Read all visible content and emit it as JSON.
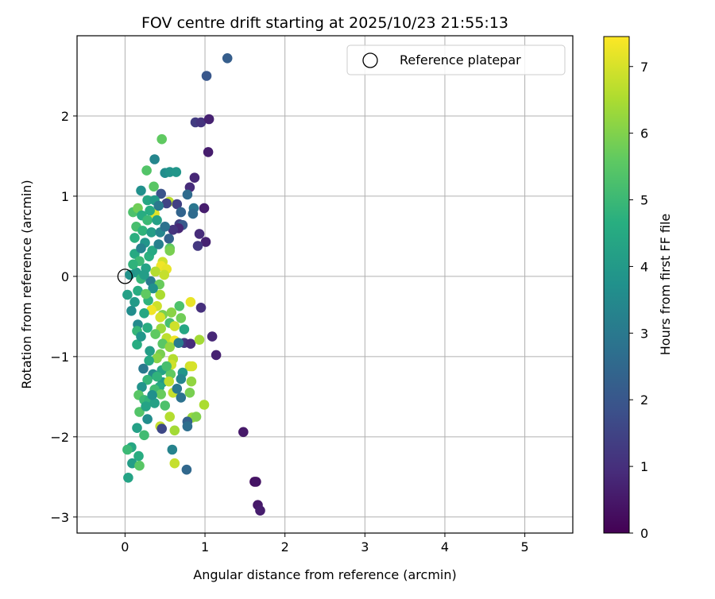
{
  "chart_data": {
    "type": "scatter",
    "title": "FOV centre drift starting at 2025/10/23 21:55:13",
    "xlabel": "Angular distance from reference (arcmin)",
    "ylabel": "Rotation from reference (arcmin)",
    "xlim": [
      -0.6,
      5.6
    ],
    "ylim": [
      -3.2,
      3.0
    ],
    "xticks": [
      0,
      1,
      2,
      3,
      4,
      5
    ],
    "yticks": [
      -3,
      -2,
      -1,
      0,
      1,
      2
    ],
    "xtick_labels": [
      "0",
      "1",
      "2",
      "3",
      "4",
      "5"
    ],
    "ytick_labels": [
      "−3",
      "−2",
      "−1",
      "0",
      "1",
      "2"
    ],
    "grid": true,
    "legend": {
      "position": "top-right",
      "entries": [
        {
          "label": "Reference platepar",
          "marker": "open-circle"
        }
      ]
    },
    "reference_point": {
      "x": 0,
      "y": 0
    },
    "colorbar": {
      "label": "Hours from first FF file",
      "colormap": "viridis",
      "range": [
        0,
        7.45
      ],
      "ticks": [
        0,
        1,
        2,
        3,
        4,
        5,
        6,
        7
      ],
      "tick_labels": [
        "0",
        "1",
        "2",
        "3",
        "4",
        "5",
        "6",
        "7"
      ]
    },
    "points": [
      {
        "x": 1.28,
        "y": 2.72,
        "t": 2.2
      },
      {
        "x": 1.02,
        "y": 2.5,
        "t": 2.0
      },
      {
        "x": 0.88,
        "y": 1.92,
        "t": 1.3
      },
      {
        "x": 0.95,
        "y": 1.92,
        "t": 1.1
      },
      {
        "x": 1.05,
        "y": 1.96,
        "t": 0.7
      },
      {
        "x": 1.04,
        "y": 1.55,
        "t": 0.6
      },
      {
        "x": 0.46,
        "y": 1.71,
        "t": 5.6
      },
      {
        "x": 0.37,
        "y": 1.46,
        "t": 3.4
      },
      {
        "x": 0.27,
        "y": 1.32,
        "t": 5.4
      },
      {
        "x": 0.5,
        "y": 1.29,
        "t": 3.6
      },
      {
        "x": 0.56,
        "y": 1.3,
        "t": 3.8
      },
      {
        "x": 0.64,
        "y": 1.3,
        "t": 3.9
      },
      {
        "x": 0.87,
        "y": 1.23,
        "t": 0.8
      },
      {
        "x": 0.81,
        "y": 1.11,
        "t": 0.9
      },
      {
        "x": 0.78,
        "y": 1.02,
        "t": 2.6
      },
      {
        "x": 0.36,
        "y": 1.12,
        "t": 5.5
      },
      {
        "x": 0.2,
        "y": 1.07,
        "t": 3.7
      },
      {
        "x": 0.45,
        "y": 1.03,
        "t": 1.9
      },
      {
        "x": 0.28,
        "y": 0.95,
        "t": 4.4
      },
      {
        "x": 0.37,
        "y": 0.95,
        "t": 4.0
      },
      {
        "x": 0.55,
        "y": 0.93,
        "t": 6.7
      },
      {
        "x": 0.52,
        "y": 0.91,
        "t": 1.5
      },
      {
        "x": 0.65,
        "y": 0.9,
        "t": 1.4
      },
      {
        "x": 0.99,
        "y": 0.85,
        "t": 0.6
      },
      {
        "x": 0.86,
        "y": 0.85,
        "t": 2.9
      },
      {
        "x": 0.85,
        "y": 0.78,
        "t": 2.6
      },
      {
        "x": 0.1,
        "y": 0.8,
        "t": 5.3
      },
      {
        "x": 0.16,
        "y": 0.85,
        "t": 5.8
      },
      {
        "x": 0.37,
        "y": 0.78,
        "t": 7.1
      },
      {
        "x": 0.7,
        "y": 0.8,
        "t": 2.4
      },
      {
        "x": 0.21,
        "y": 0.76,
        "t": 4.6
      },
      {
        "x": 0.28,
        "y": 0.7,
        "t": 5.0
      },
      {
        "x": 0.4,
        "y": 0.7,
        "t": 4.2
      },
      {
        "x": 0.68,
        "y": 0.65,
        "t": 1.4
      },
      {
        "x": 0.72,
        "y": 0.64,
        "t": 2.1
      },
      {
        "x": 0.67,
        "y": 0.6,
        "t": 0.8
      },
      {
        "x": 0.6,
        "y": 0.58,
        "t": 1.1
      },
      {
        "x": 0.14,
        "y": 0.62,
        "t": 5.2
      },
      {
        "x": 0.22,
        "y": 0.57,
        "t": 4.8
      },
      {
        "x": 0.33,
        "y": 0.55,
        "t": 4.1
      },
      {
        "x": 0.44,
        "y": 0.55,
        "t": 3.4
      },
      {
        "x": 0.93,
        "y": 0.53,
        "t": 0.9
      },
      {
        "x": 0.55,
        "y": 0.47,
        "t": 2.3
      },
      {
        "x": 1.01,
        "y": 0.43,
        "t": 0.7
      },
      {
        "x": 0.91,
        "y": 0.38,
        "t": 1.2
      },
      {
        "x": 0.25,
        "y": 0.42,
        "t": 3.9
      },
      {
        "x": 0.56,
        "y": 0.35,
        "t": 5.6
      },
      {
        "x": 0.56,
        "y": 0.32,
        "t": 5.9
      },
      {
        "x": 0.12,
        "y": 0.28,
        "t": 4.5
      },
      {
        "x": 0.3,
        "y": 0.25,
        "t": 4.7
      },
      {
        "x": 0.47,
        "y": 0.18,
        "t": 6.9
      },
      {
        "x": 0.45,
        "y": 0.13,
        "t": 7.3
      },
      {
        "x": 0.18,
        "y": 0.19,
        "t": 5.0
      },
      {
        "x": 0.38,
        "y": 0.06,
        "t": 6.6
      },
      {
        "x": 0.52,
        "y": 0.09,
        "t": 7.2
      },
      {
        "x": 0.49,
        "y": 0.02,
        "t": 6.8
      },
      {
        "x": 0.26,
        "y": 0.1,
        "t": 4.3
      },
      {
        "x": 0.14,
        "y": 0.05,
        "t": 4.0
      },
      {
        "x": 0.2,
        "y": -0.03,
        "t": 4.9
      },
      {
        "x": 0.06,
        "y": 0.02,
        "t": 3.8
      },
      {
        "x": 0.32,
        "y": -0.06,
        "t": 3.1
      },
      {
        "x": 0.43,
        "y": -0.1,
        "t": 5.7
      },
      {
        "x": 0.03,
        "y": -0.23,
        "t": 4.2
      },
      {
        "x": 0.16,
        "y": -0.18,
        "t": 4.6
      },
      {
        "x": 0.44,
        "y": -0.23,
        "t": 6.5
      },
      {
        "x": 0.29,
        "y": -0.3,
        "t": 4.8
      },
      {
        "x": 0.68,
        "y": -0.37,
        "t": 5.3
      },
      {
        "x": 0.82,
        "y": -0.32,
        "t": 7.2
      },
      {
        "x": 0.95,
        "y": -0.39,
        "t": 1.0
      },
      {
        "x": 0.4,
        "y": -0.37,
        "t": 6.9
      },
      {
        "x": 0.33,
        "y": -0.42,
        "t": 7.3
      },
      {
        "x": 0.08,
        "y": -0.43,
        "t": 3.6
      },
      {
        "x": 0.24,
        "y": -0.46,
        "t": 4.4
      },
      {
        "x": 0.47,
        "y": -0.48,
        "t": 5.9
      },
      {
        "x": 0.44,
        "y": -0.51,
        "t": 7.0
      },
      {
        "x": 0.7,
        "y": -0.52,
        "t": 5.8
      },
      {
        "x": 0.56,
        "y": -0.58,
        "t": 5.2
      },
      {
        "x": 0.16,
        "y": -0.6,
        "t": 3.5
      },
      {
        "x": 0.28,
        "y": -0.64,
        "t": 4.6
      },
      {
        "x": 0.45,
        "y": -0.65,
        "t": 6.3
      },
      {
        "x": 0.62,
        "y": -0.62,
        "t": 6.9
      },
      {
        "x": 0.74,
        "y": -0.66,
        "t": 4.4
      },
      {
        "x": 0.15,
        "y": -0.68,
        "t": 4.9
      },
      {
        "x": 1.09,
        "y": -0.75,
        "t": 0.8
      },
      {
        "x": 0.38,
        "y": -0.72,
        "t": 5.6
      },
      {
        "x": 0.52,
        "y": -0.77,
        "t": 6.7
      },
      {
        "x": 0.62,
        "y": -0.8,
        "t": 7.3
      },
      {
        "x": 0.74,
        "y": -0.83,
        "t": 1.2
      },
      {
        "x": 0.82,
        "y": -0.84,
        "t": 0.9
      },
      {
        "x": 0.93,
        "y": -0.79,
        "t": 6.4
      },
      {
        "x": 0.15,
        "y": -0.85,
        "t": 4.6
      },
      {
        "x": 0.47,
        "y": -0.84,
        "t": 5.5
      },
      {
        "x": 0.56,
        "y": -0.88,
        "t": 6.2
      },
      {
        "x": 0.67,
        "y": -0.83,
        "t": 3.1
      },
      {
        "x": 0.31,
        "y": -0.93,
        "t": 4.1
      },
      {
        "x": 0.44,
        "y": -0.97,
        "t": 5.9
      },
      {
        "x": 1.14,
        "y": -0.98,
        "t": 0.7
      },
      {
        "x": 0.4,
        "y": -1.02,
        "t": 6.1
      },
      {
        "x": 0.6,
        "y": -1.03,
        "t": 6.6
      },
      {
        "x": 0.58,
        "y": -1.1,
        "t": 6.9
      },
      {
        "x": 0.23,
        "y": -1.15,
        "t": 3.0
      },
      {
        "x": 0.46,
        "y": -1.17,
        "t": 4.3
      },
      {
        "x": 0.81,
        "y": -1.12,
        "t": 6.9
      },
      {
        "x": 0.84,
        "y": -1.12,
        "t": 7.0
      },
      {
        "x": 0.35,
        "y": -1.22,
        "t": 3.5
      },
      {
        "x": 0.57,
        "y": -1.22,
        "t": 5.6
      },
      {
        "x": 0.72,
        "y": -1.2,
        "t": 3.9
      },
      {
        "x": 0.28,
        "y": -1.29,
        "t": 4.9
      },
      {
        "x": 0.47,
        "y": -1.32,
        "t": 4.0
      },
      {
        "x": 0.55,
        "y": -1.31,
        "t": 6.7
      },
      {
        "x": 0.7,
        "y": -1.28,
        "t": 3.4
      },
      {
        "x": 0.83,
        "y": -1.31,
        "t": 6.2
      },
      {
        "x": 0.21,
        "y": -1.38,
        "t": 3.8
      },
      {
        "x": 0.43,
        "y": -1.38,
        "t": 4.5
      },
      {
        "x": 0.37,
        "y": -1.41,
        "t": 5.1
      },
      {
        "x": 0.6,
        "y": -1.45,
        "t": 6.8
      },
      {
        "x": 0.17,
        "y": -1.48,
        "t": 5.5
      },
      {
        "x": 0.45,
        "y": -1.47,
        "t": 5.7
      },
      {
        "x": 0.81,
        "y": -1.45,
        "t": 5.9
      },
      {
        "x": 0.7,
        "y": -1.51,
        "t": 2.8
      },
      {
        "x": 0.24,
        "y": -1.54,
        "t": 5.0
      },
      {
        "x": 0.3,
        "y": -1.55,
        "t": 4.8
      },
      {
        "x": 0.37,
        "y": -1.58,
        "t": 4.2
      },
      {
        "x": 0.5,
        "y": -1.61,
        "t": 5.3
      },
      {
        "x": 0.99,
        "y": -1.6,
        "t": 6.5
      },
      {
        "x": 0.18,
        "y": -1.69,
        "t": 5.4
      },
      {
        "x": 0.56,
        "y": -1.75,
        "t": 6.6
      },
      {
        "x": 0.84,
        "y": -1.76,
        "t": 6.3
      },
      {
        "x": 0.89,
        "y": -1.75,
        "t": 6.0
      },
      {
        "x": 0.28,
        "y": -1.78,
        "t": 3.6
      },
      {
        "x": 0.78,
        "y": -1.81,
        "t": 2.3
      },
      {
        "x": 0.78,
        "y": -1.87,
        "t": 2.7
      },
      {
        "x": 0.15,
        "y": -1.89,
        "t": 4.2
      },
      {
        "x": 0.44,
        "y": -1.87,
        "t": 6.8
      },
      {
        "x": 0.46,
        "y": -1.9,
        "t": 1.6
      },
      {
        "x": 0.62,
        "y": -1.92,
        "t": 6.4
      },
      {
        "x": 0.24,
        "y": -1.98,
        "t": 5.1
      },
      {
        "x": 1.48,
        "y": -1.94,
        "t": 0.5
      },
      {
        "x": 0.08,
        "y": -2.13,
        "t": 4.4
      },
      {
        "x": 0.03,
        "y": -2.16,
        "t": 5.0
      },
      {
        "x": 0.59,
        "y": -2.16,
        "t": 3.3
      },
      {
        "x": 0.17,
        "y": -2.24,
        "t": 4.6
      },
      {
        "x": 0.09,
        "y": -2.33,
        "t": 4.1
      },
      {
        "x": 0.18,
        "y": -2.36,
        "t": 5.5
      },
      {
        "x": 0.62,
        "y": -2.33,
        "t": 6.8
      },
      {
        "x": 0.77,
        "y": -2.41,
        "t": 2.5
      },
      {
        "x": 0.04,
        "y": -2.51,
        "t": 4.3
      },
      {
        "x": 1.62,
        "y": -2.56,
        "t": 0.3
      },
      {
        "x": 1.64,
        "y": -2.56,
        "t": 0.4
      },
      {
        "x": 1.66,
        "y": -2.85,
        "t": 0.5
      },
      {
        "x": 1.69,
        "y": -2.92,
        "t": 0.6
      },
      {
        "x": 0.12,
        "y": 0.48,
        "t": 4.7
      },
      {
        "x": 0.2,
        "y": 0.35,
        "t": 3.3
      },
      {
        "x": 0.34,
        "y": 0.32,
        "t": 4.5
      },
      {
        "x": 0.1,
        "y": 0.15,
        "t": 4.8
      },
      {
        "x": 0.24,
        "y": 0.02,
        "t": 4.1
      },
      {
        "x": 0.35,
        "y": -0.15,
        "t": 3.7
      },
      {
        "x": 0.12,
        "y": -0.32,
        "t": 4.0
      },
      {
        "x": 0.26,
        "y": -0.22,
        "t": 5.6
      },
      {
        "x": 0.58,
        "y": -0.45,
        "t": 6.1
      },
      {
        "x": 0.2,
        "y": -0.75,
        "t": 3.9
      },
      {
        "x": 0.3,
        "y": -1.05,
        "t": 4.5
      },
      {
        "x": 0.52,
        "y": -1.12,
        "t": 5.2
      },
      {
        "x": 0.4,
        "y": -1.25,
        "t": 4.8
      },
      {
        "x": 0.65,
        "y": -1.4,
        "t": 3.0
      },
      {
        "x": 0.34,
        "y": -1.48,
        "t": 3.7
      },
      {
        "x": 0.26,
        "y": -1.62,
        "t": 4.3
      },
      {
        "x": 0.42,
        "y": 0.4,
        "t": 3.2
      },
      {
        "x": 0.5,
        "y": 0.62,
        "t": 2.8
      },
      {
        "x": 0.31,
        "y": 0.82,
        "t": 4.6
      },
      {
        "x": 0.42,
        "y": 0.88,
        "t": 3.0
      }
    ]
  }
}
